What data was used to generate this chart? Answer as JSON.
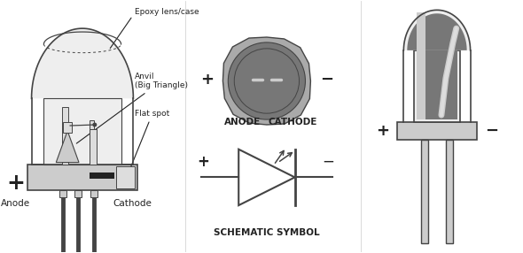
{
  "bg_color": "#ffffff",
  "text_color": "#222222",
  "gray_dark": "#777777",
  "gray_mid": "#aaaaaa",
  "gray_light": "#cccccc",
  "gray_lighter": "#dddddd",
  "gray_lightest": "#eeeeee",
  "outline_color": "#444444",
  "labels": {
    "epoxy": "Epoxy lens/case",
    "anvil": "Anvil\n(Big Triangle)",
    "flat_spot": "Flat spot",
    "anode_label": "Anode",
    "cathode_label": "Cathode",
    "anode_top": "ANODE",
    "cathode_top": "CATHODE",
    "schematic": "SCHEMATIC SYMBOL"
  },
  "plus_sign": "+",
  "minus_sign": "−"
}
